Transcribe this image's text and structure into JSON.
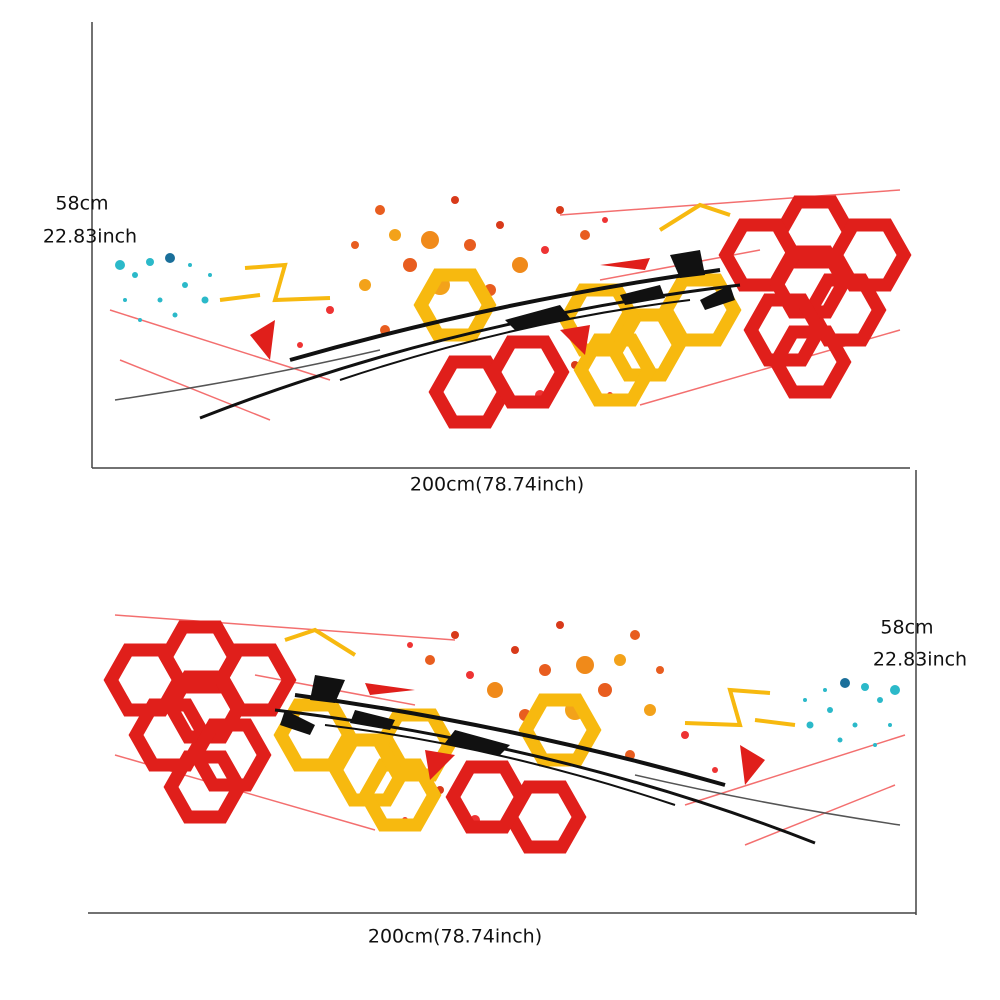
{
  "panels": [
    {
      "height_cm": "58cm",
      "height_inch": "22.83inch",
      "width": "200cm(78.74inch)"
    },
    {
      "height_cm": "58cm",
      "height_inch": "22.83inch",
      "width": "200cm(78.74inch)"
    }
  ]
}
